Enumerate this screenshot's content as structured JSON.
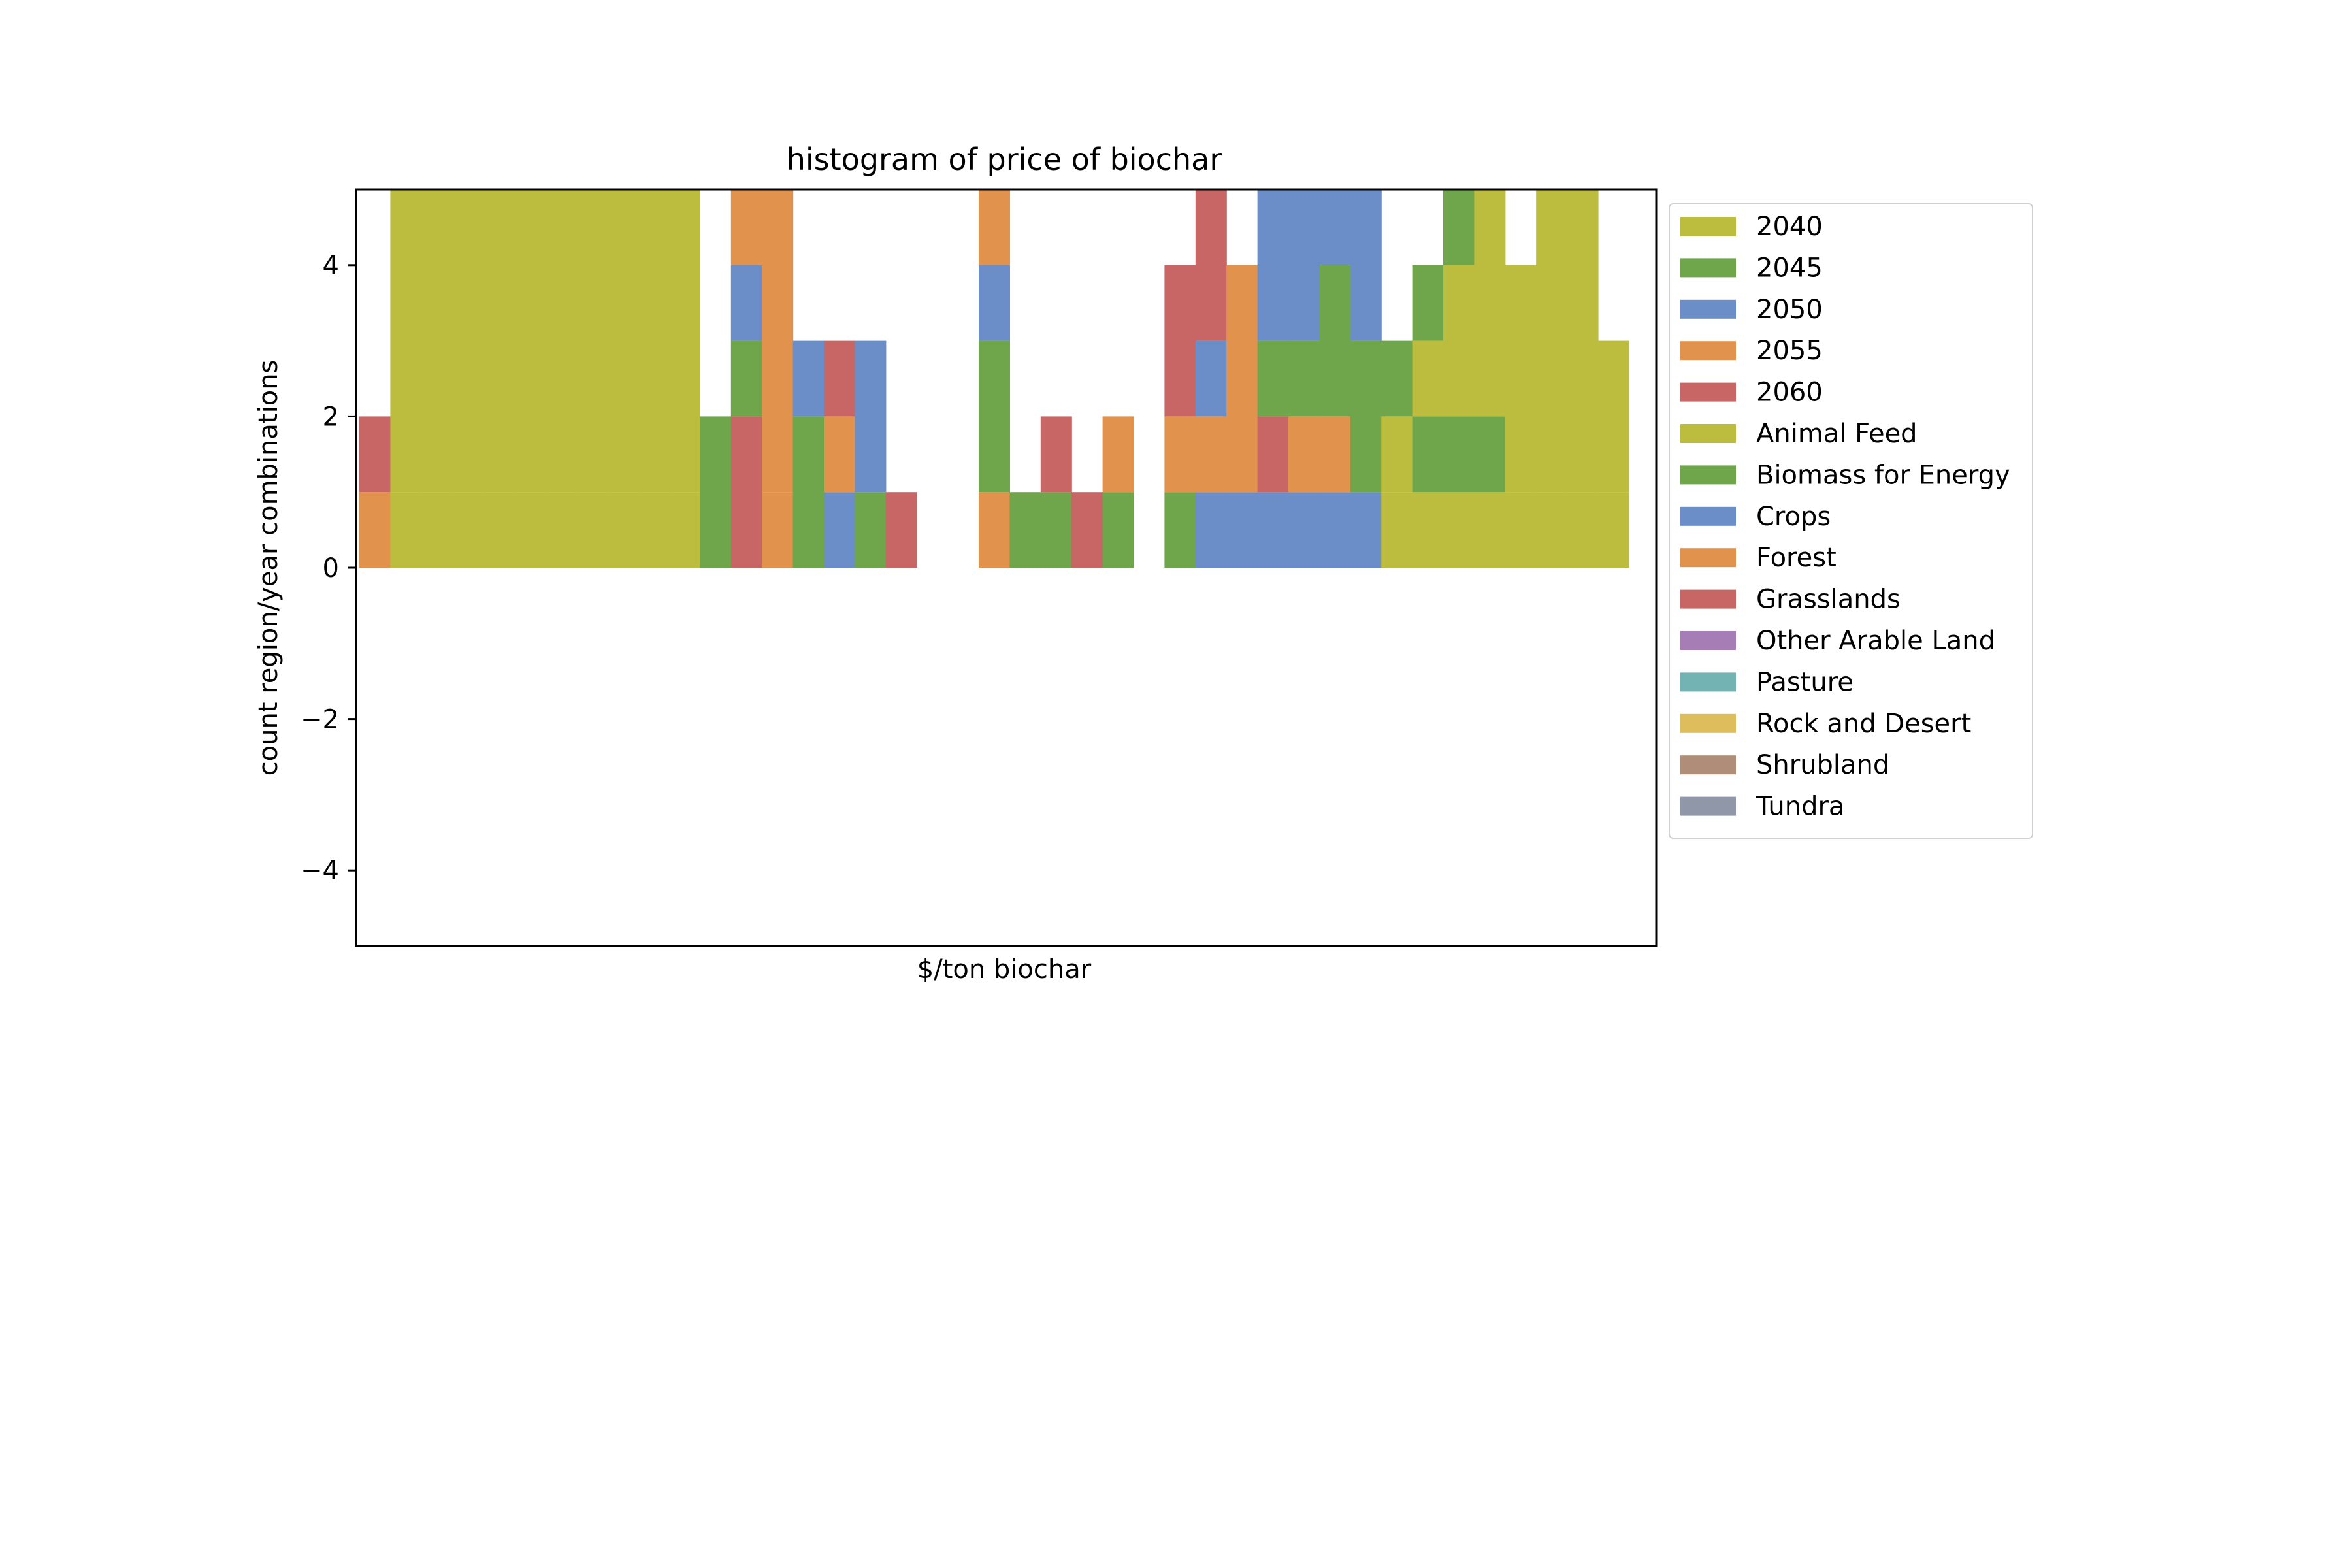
{
  "chart_data": {
    "type": "bar",
    "title": "histogram of price of biochar",
    "xlabel": "$/ton biochar",
    "ylabel": "count region/year combinations",
    "ylim": [
      -5,
      5
    ],
    "yticks": [
      -4,
      -2,
      0,
      2,
      4
    ],
    "xticks": [],
    "grid": false,
    "legend_placement": "outside right",
    "bins": 41,
    "series": [
      {
        "name": "2040",
        "color": "#bcbc3e",
        "values": [
          0,
          1,
          1,
          1,
          1,
          1,
          1,
          1,
          1,
          1,
          1,
          0,
          0,
          0,
          0,
          0,
          0,
          0,
          0,
          0,
          0,
          0,
          0,
          0,
          0,
          0,
          0,
          0,
          0,
          0,
          0,
          0,
          0,
          1,
          1,
          1,
          1,
          1,
          1,
          1,
          1
        ]
      },
      {
        "name": "2045",
        "color": "#6fa64b",
        "values": [
          0,
          0,
          0,
          0,
          0,
          0,
          0,
          0,
          0,
          0,
          0,
          0,
          0,
          0,
          0,
          0,
          0,
          0,
          0,
          0,
          0,
          0,
          0,
          0,
          0,
          0,
          0,
          0,
          0,
          0,
          0,
          0,
          0,
          0,
          1,
          1,
          1,
          0,
          0,
          0,
          0
        ]
      },
      {
        "name": "2050",
        "color": "#6b8ec9",
        "values": [
          0,
          0,
          0,
          0,
          0,
          0,
          0,
          0,
          0,
          0,
          0,
          0,
          0,
          0,
          0,
          0,
          0,
          0,
          0,
          0,
          0,
          0,
          0,
          0,
          0,
          0,
          0,
          1,
          1,
          1,
          1,
          1,
          1,
          0,
          0,
          0,
          0,
          0,
          0,
          0,
          0
        ]
      },
      {
        "name": "2055",
        "color": "#e1934e",
        "values": [
          0,
          0,
          0,
          0,
          0,
          0,
          0,
          0,
          0,
          0,
          0,
          0,
          0,
          1,
          0,
          0,
          0,
          0,
          0,
          0,
          1,
          0,
          0,
          0,
          0,
          0,
          0,
          1,
          0,
          0,
          1,
          1,
          0,
          0,
          0,
          0,
          0,
          0,
          0,
          0,
          0
        ]
      },
      {
        "name": "2060",
        "color": "#c76664",
        "values": [
          0,
          0,
          0,
          0,
          0,
          0,
          0,
          0,
          0,
          0,
          0,
          0,
          2,
          0,
          0,
          0,
          0,
          0,
          0,
          0,
          0,
          0,
          0,
          0,
          0,
          0,
          0,
          0,
          0,
          1,
          0,
          0,
          0,
          0,
          0,
          0,
          0,
          0,
          0,
          0,
          0
        ]
      },
      {
        "name": "Animal Feed",
        "color": "#bcbc3e",
        "values": [
          0,
          4,
          4,
          4,
          4,
          4,
          4,
          4,
          4,
          4,
          4,
          0,
          0,
          0,
          0,
          0,
          0,
          0,
          0,
          0,
          0,
          0,
          0,
          0,
          0,
          0,
          0,
          0,
          0,
          0,
          0,
          0,
          0,
          1,
          1,
          2,
          3,
          3,
          4,
          4,
          2
        ]
      },
      {
        "name": "Biomass for Energy",
        "color": "#6fa64b",
        "values": [
          0,
          0,
          0,
          0,
          0,
          0,
          0,
          0,
          0,
          0,
          1,
          2,
          1,
          0,
          2,
          0,
          1,
          0,
          0,
          0,
          2,
          1,
          1,
          0,
          1,
          0,
          1,
          0,
          0,
          1,
          1,
          2,
          2,
          1,
          1,
          1,
          0,
          0,
          0,
          0,
          0
        ]
      },
      {
        "name": "Crops",
        "color": "#6b8ec9",
        "values": [
          0,
          0,
          0,
          0,
          0,
          0,
          0,
          0,
          0,
          0,
          0,
          0,
          1,
          0,
          1,
          1,
          2,
          0,
          0,
          0,
          1,
          0,
          0,
          0,
          0,
          0,
          0,
          1,
          0,
          2,
          2,
          1,
          3,
          0,
          0,
          0,
          0,
          0,
          0,
          0,
          0
        ]
      },
      {
        "name": "Forest",
        "color": "#e1934e",
        "values": [
          1,
          0,
          0,
          0,
          0,
          0,
          0,
          0,
          0,
          0,
          0,
          0,
          1,
          5,
          0,
          1,
          0,
          0,
          0,
          0,
          1,
          0,
          0,
          0,
          1,
          0,
          1,
          0,
          3,
          0,
          0,
          1,
          0,
          0,
          0,
          0,
          0,
          0,
          0,
          0,
          0
        ]
      },
      {
        "name": "Grasslands",
        "color": "#c76664",
        "values": [
          1,
          0,
          0,
          0,
          0,
          0,
          0,
          0,
          0,
          0,
          0,
          0,
          1,
          0,
          0,
          1,
          0,
          1,
          0,
          0,
          0,
          0,
          1,
          1,
          0,
          0,
          2,
          2,
          0,
          1,
          0,
          0,
          0,
          0,
          0,
          0,
          0,
          0,
          0,
          0,
          0
        ]
      },
      {
        "name": "Other Arable Land",
        "color": "#a77db6",
        "values": [
          0,
          0,
          0,
          0,
          0,
          0,
          0,
          0,
          0,
          0,
          0,
          0,
          0,
          0,
          0,
          0,
          0,
          0,
          0,
          0,
          0,
          0,
          0,
          0,
          0,
          0,
          0,
          0,
          0,
          0,
          0,
          0,
          0,
          0,
          0,
          0,
          0,
          0,
          0,
          0,
          0
        ]
      },
      {
        "name": "Pasture",
        "color": "#73b3b4",
        "values": [
          0,
          0,
          0,
          0,
          0,
          0,
          0,
          0,
          0,
          0,
          0,
          0,
          0,
          0,
          0,
          0,
          0,
          0,
          0,
          0,
          0,
          0,
          0,
          0,
          0,
          0,
          0,
          0,
          0,
          0,
          0,
          0,
          0,
          0,
          0,
          0,
          0,
          0,
          0,
          0,
          0
        ]
      },
      {
        "name": "Rock and Desert",
        "color": "#ddbd5c",
        "values": [
          0,
          0,
          0,
          0,
          0,
          0,
          0,
          0,
          0,
          0,
          0,
          0,
          0,
          0,
          0,
          0,
          0,
          0,
          0,
          0,
          0,
          0,
          0,
          0,
          0,
          0,
          0,
          0,
          0,
          0,
          0,
          0,
          0,
          0,
          0,
          0,
          0,
          0,
          0,
          0,
          0
        ]
      },
      {
        "name": "Shrubland",
        "color": "#b08d78",
        "values": [
          0,
          0,
          0,
          0,
          0,
          0,
          0,
          0,
          0,
          0,
          0,
          0,
          0,
          0,
          0,
          0,
          0,
          0,
          0,
          0,
          0,
          0,
          0,
          0,
          0,
          0,
          0,
          0,
          0,
          0,
          0,
          0,
          0,
          0,
          0,
          0,
          0,
          0,
          0,
          0,
          0
        ]
      },
      {
        "name": "Tundra",
        "color": "#8f97a8",
        "values": [
          0,
          0,
          0,
          0,
          0,
          0,
          0,
          0,
          0,
          0,
          0,
          0,
          0,
          0,
          0,
          0,
          0,
          0,
          0,
          0,
          0,
          0,
          0,
          0,
          0,
          0,
          0,
          0,
          0,
          0,
          0,
          0,
          0,
          0,
          0,
          0,
          0,
          0,
          0,
          0,
          0
        ]
      }
    ]
  }
}
